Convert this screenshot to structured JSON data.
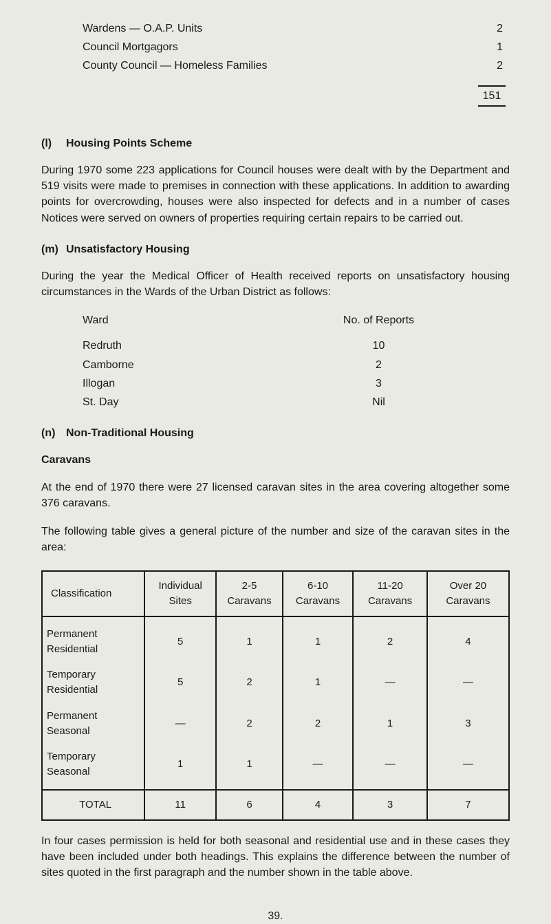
{
  "top_rows": [
    {
      "label": "Wardens — O.A.P. Units",
      "value": "2"
    },
    {
      "label": "Council Mortgagors",
      "value": "1"
    },
    {
      "label": "County Council — Homeless Families",
      "value": "2"
    }
  ],
  "top_total": "151",
  "section_l": {
    "num": "(l)",
    "title": "Housing Points Scheme",
    "para": "During 1970 some 223 applications for Council houses were dealt with by the Department and 519 visits were made to premises in connection with these applications. In addition to awarding points for overcrowding, houses were also inspected for defects and in a number of cases Notices were served on owners of properties requiring certain repairs to be carried out."
  },
  "section_m": {
    "num": "(m)",
    "title": "Unsatisfactory Housing",
    "para": "During the year the Medical Officer of Health received reports on unsatisfactory housing circumstances in the Wards of the Urban District as follows:",
    "ward_head_left": "Ward",
    "ward_head_right": "No. of Reports",
    "wards": [
      {
        "name": "Redruth",
        "val": "10"
      },
      {
        "name": "Camborne",
        "val": "2"
      },
      {
        "name": "Illogan",
        "val": "3"
      },
      {
        "name": "St. Day",
        "val": "Nil"
      }
    ]
  },
  "section_n": {
    "num": "(n)",
    "title": "Non-Traditional Housing",
    "sub": "Caravans",
    "para1": "At the end of 1970 there were 27 licensed caravan sites in the area covering altogether some 376 caravans.",
    "para2": "The following table gives a general picture of the number and size of the caravan sites in the area:"
  },
  "table": {
    "headers": [
      "Classification",
      "Individual Sites",
      "2-5 Caravans",
      "6-10 Caravans",
      "11-20 Caravans",
      "Over 20 Caravans"
    ],
    "rows": [
      [
        "Permanent Residential",
        "5",
        "1",
        "1",
        "2",
        "4"
      ],
      [
        "Temporary Residential",
        "5",
        "2",
        "1",
        "—",
        "—"
      ],
      [
        "Permanent Seasonal",
        "—",
        "2",
        "2",
        "1",
        "3"
      ],
      [
        "Temporary Seasonal",
        "1",
        "1",
        "—",
        "—",
        "—"
      ]
    ],
    "total_label": "TOTAL",
    "totals": [
      "11",
      "6",
      "4",
      "3",
      "7"
    ]
  },
  "footer_para": "In four cases permission is held for both seasonal and residential use and in these cases they have been included under both headings. This explains the difference between the number of sites quoted in the first paragraph and the number shown in the table above.",
  "page_number": "39."
}
